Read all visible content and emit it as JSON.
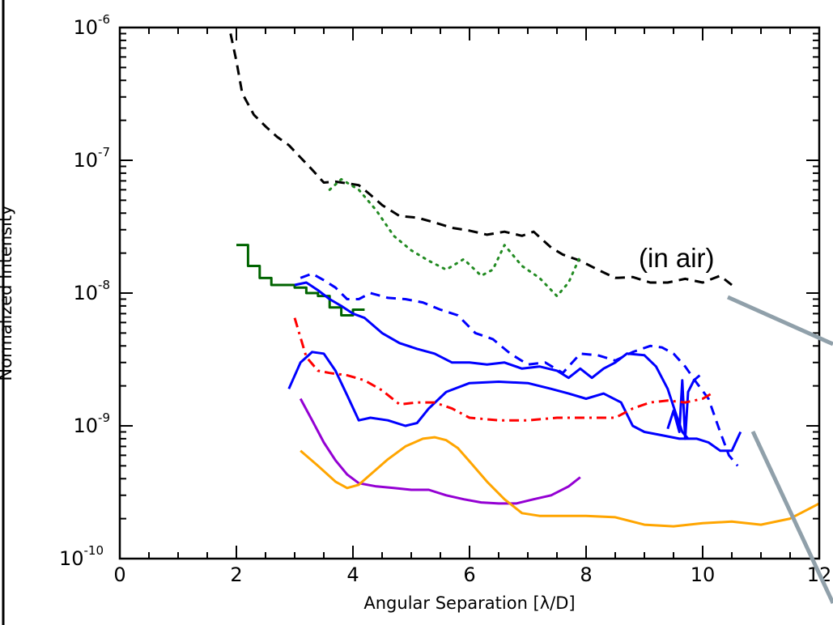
{
  "chart_data": {
    "type": "line",
    "xlabel": "Angular Separation [λ/D]",
    "ylabel": "Normalized Intensity",
    "xlim": [
      0,
      12
    ],
    "ylim": [
      1e-10,
      1e-06
    ],
    "y_scale": "log",
    "x_ticks": [
      "0",
      "2",
      "4",
      "6",
      "8",
      "10",
      "12"
    ],
    "y_ticks": [
      {
        "base": "10",
        "exp": "-6"
      },
      {
        "base": "10",
        "exp": "-7"
      },
      {
        "base": "10",
        "exp": "-8"
      },
      {
        "base": "10",
        "exp": "-9"
      },
      {
        "base": "10",
        "exp": "-10"
      }
    ],
    "annotations": [
      {
        "text": "(in air)"
      }
    ],
    "series": [
      {
        "color": "#000000",
        "dash": "dashed",
        "x": [
          1.9,
          2.0,
          2.1,
          2.3,
          2.5,
          2.7,
          2.9,
          3.1,
          3.3,
          3.5,
          3.7,
          3.9,
          4.1,
          4.3,
          4.5,
          4.8,
          5.1,
          5.4,
          5.7,
          6.0,
          6.3,
          6.6,
          6.9,
          7.1,
          7.4,
          7.6,
          7.9,
          8.2,
          8.5,
          8.8,
          9.1,
          9.4,
          9.7,
          10.0,
          10.3,
          10.5
        ],
        "y": [
          9e-07,
          5.6e-07,
          3.2e-07,
          2.2e-07,
          1.8e-07,
          1.5e-07,
          1.3e-07,
          1.05e-07,
          8.5e-08,
          6.8e-08,
          6.9e-08,
          6.7e-08,
          6.5e-08,
          5.5e-08,
          4.6e-08,
          3.8e-08,
          3.7e-08,
          3.4e-08,
          3.1e-08,
          2.95e-08,
          2.75e-08,
          2.9e-08,
          2.7e-08,
          2.9e-08,
          2.2e-08,
          1.95e-08,
          1.75e-08,
          1.5e-08,
          1.3e-08,
          1.32e-08,
          1.2e-08,
          1.2e-08,
          1.28e-08,
          1.2e-08,
          1.35e-08,
          1.15e-08
        ]
      },
      {
        "color": "#228B22",
        "dash": "dotted",
        "x": [
          3.6,
          3.8,
          4.1,
          4.4,
          4.7,
          5.0,
          5.3,
          5.6,
          5.9,
          6.2,
          6.4,
          6.6,
          6.9,
          7.2,
          7.5,
          7.7,
          7.9
        ],
        "y": [
          6e-08,
          7.2e-08,
          6e-08,
          4.2e-08,
          2.7e-08,
          2.1e-08,
          1.75e-08,
          1.5e-08,
          1.8e-08,
          1.35e-08,
          1.5e-08,
          2.3e-08,
          1.6e-08,
          1.3e-08,
          9.5e-09,
          1.2e-08,
          1.9e-08
        ]
      },
      {
        "color": "#006400",
        "dash": "step",
        "x": [
          2.0,
          2.2,
          2.4,
          2.6,
          2.8,
          3.0,
          3.2,
          3.4,
          3.6,
          3.8,
          4.0,
          4.2
        ],
        "y": [
          2.3e-08,
          1.6e-08,
          1.3e-08,
          1.15e-08,
          1.15e-08,
          1.1e-08,
          1e-08,
          9.5e-09,
          7.8e-09,
          6.8e-09,
          7.5e-09,
          7.5e-09
        ]
      },
      {
        "color": "#0000ff",
        "dash": "dashed",
        "x": [
          3.1,
          3.3,
          3.5,
          3.7,
          3.9,
          4.1,
          4.3,
          4.6,
          4.9,
          5.2,
          5.5,
          5.8,
          6.1,
          6.4,
          6.7,
          7.0,
          7.3,
          7.6,
          7.9,
          8.2,
          8.5,
          8.8,
          9.1,
          9.3,
          9.5,
          9.7,
          9.9,
          10.1,
          10.3,
          10.45,
          10.6
        ],
        "y": [
          1.3e-08,
          1.4e-08,
          1.25e-08,
          1.1e-08,
          9e-09,
          9e-09,
          1e-08,
          9.2e-09,
          9e-09,
          8.5e-09,
          7.5e-09,
          6.8e-09,
          5e-09,
          4.5e-09,
          3.5e-09,
          2.9e-09,
          3e-09,
          2.5e-09,
          3.5e-09,
          3.4e-09,
          3.1e-09,
          3.6e-09,
          4e-09,
          3.9e-09,
          3.5e-09,
          2.8e-09,
          2.1e-09,
          1.6e-09,
          9e-10,
          6e-10,
          5e-10
        ]
      },
      {
        "color": "#0000ff",
        "dash": "solid",
        "x": [
          3.0,
          3.2,
          3.4,
          3.6,
          3.8,
          4.0,
          4.2,
          4.5,
          4.8,
          5.1,
          5.4,
          5.7,
          6.0,
          6.3,
          6.6,
          6.9,
          7.2,
          7.5,
          7.7,
          7.9,
          8.1,
          8.3,
          8.5,
          8.7,
          9.0,
          9.2,
          9.4,
          9.55,
          9.65,
          9.75
        ],
        "y": [
          1.15e-08,
          1.2e-08,
          1.05e-08,
          9e-09,
          8e-09,
          7e-09,
          6.5e-09,
          5e-09,
          4.2e-09,
          3.8e-09,
          3.5e-09,
          3e-09,
          3e-09,
          2.9e-09,
          3e-09,
          2.7e-09,
          2.8e-09,
          2.6e-09,
          2.3e-09,
          2.7e-09,
          2.3e-09,
          2.7e-09,
          3e-09,
          3.5e-09,
          3.4e-09,
          2.8e-09,
          1.9e-09,
          1.2e-09,
          9e-10,
          8e-10
        ]
      },
      {
        "color": "#0000ff",
        "dash": "solid",
        "x": [
          2.9,
          3.1,
          3.3,
          3.5,
          3.7,
          3.9,
          4.1,
          4.3,
          4.6,
          4.9,
          5.1,
          5.3,
          5.6,
          6.0,
          6.5,
          7.0,
          7.4,
          7.7,
          8.0,
          8.3,
          8.6,
          8.8,
          9.0,
          9.3,
          9.6,
          9.9,
          10.1,
          10.3,
          10.5,
          10.65
        ],
        "y": [
          1.9e-09,
          3e-09,
          3.6e-09,
          3.5e-09,
          2.6e-09,
          1.7e-09,
          1.1e-09,
          1.15e-09,
          1.1e-09,
          1e-09,
          1.05e-09,
          1.35e-09,
          1.8e-09,
          2.1e-09,
          2.15e-09,
          2.1e-09,
          1.9e-09,
          1.75e-09,
          1.6e-09,
          1.75e-09,
          1.5e-09,
          1e-09,
          9e-10,
          8.5e-10,
          8e-10,
          8e-10,
          7.5e-10,
          6.5e-10,
          6.5e-10,
          9e-10
        ]
      },
      {
        "color": "#0000ff",
        "dash": "solid",
        "x": [
          9.4,
          9.5,
          9.6,
          9.65,
          9.7,
          9.75,
          9.85,
          9.95
        ],
        "y": [
          9.5e-10,
          1.3e-09,
          9e-10,
          2.2e-09,
          8e-10,
          1.8e-09,
          2.2e-09,
          2.4e-09
        ]
      },
      {
        "color": "#ff0000",
        "dash": "dashdot",
        "x": [
          3.0,
          3.2,
          3.4,
          3.6,
          3.9,
          4.2,
          4.5,
          4.8,
          5.1,
          5.4,
          5.7,
          6.0,
          6.5,
          7.0,
          7.5,
          8.0,
          8.5,
          8.8,
          9.1,
          9.4,
          9.7,
          10.0,
          10.2
        ],
        "y": [
          6.5e-09,
          3.3e-09,
          2.6e-09,
          2.5e-09,
          2.4e-09,
          2.2e-09,
          1.85e-09,
          1.45e-09,
          1.5e-09,
          1.5e-09,
          1.35e-09,
          1.15e-09,
          1.1e-09,
          1.1e-09,
          1.15e-09,
          1.15e-09,
          1.15e-09,
          1.35e-09,
          1.5e-09,
          1.55e-09,
          1.5e-09,
          1.6e-09,
          1.8e-09
        ]
      },
      {
        "color": "#9400d3",
        "dash": "solid",
        "x": [
          3.1,
          3.3,
          3.5,
          3.7,
          3.9,
          4.1,
          4.4,
          4.7,
          5.0,
          5.3,
          5.6,
          5.9,
          6.2,
          6.5,
          6.8,
          7.1,
          7.4,
          7.7,
          7.9
        ],
        "y": [
          1.6e-09,
          1.1e-09,
          7.5e-10,
          5.5e-10,
          4.3e-10,
          3.7e-10,
          3.5e-10,
          3.4e-10,
          3.3e-10,
          3.3e-10,
          3e-10,
          2.8e-10,
          2.65e-10,
          2.6e-10,
          2.6e-10,
          2.8e-10,
          3e-10,
          3.5e-10,
          4.1e-10
        ]
      },
      {
        "color": "#ffa500",
        "dash": "solid",
        "x": [
          3.1,
          3.4,
          3.7,
          3.9,
          4.1,
          4.3,
          4.6,
          4.9,
          5.2,
          5.4,
          5.6,
          5.8,
          6.0,
          6.3,
          6.6,
          6.9,
          7.2,
          7.5,
          8.0,
          8.5,
          9.0,
          9.5,
          10.0,
          10.5,
          11.0,
          11.5,
          12.0
        ],
        "y": [
          6.5e-10,
          5e-10,
          3.8e-10,
          3.4e-10,
          3.6e-10,
          4.3e-10,
          5.6e-10,
          7e-10,
          8e-10,
          8.2e-10,
          7.8e-10,
          6.8e-10,
          5.4e-10,
          3.8e-10,
          2.8e-10,
          2.2e-10,
          2.1e-10,
          2.1e-10,
          2.1e-10,
          2.05e-10,
          1.8e-10,
          1.75e-10,
          1.85e-10,
          1.9e-10,
          1.8e-10,
          2e-10,
          2.6e-10
        ]
      }
    ]
  }
}
